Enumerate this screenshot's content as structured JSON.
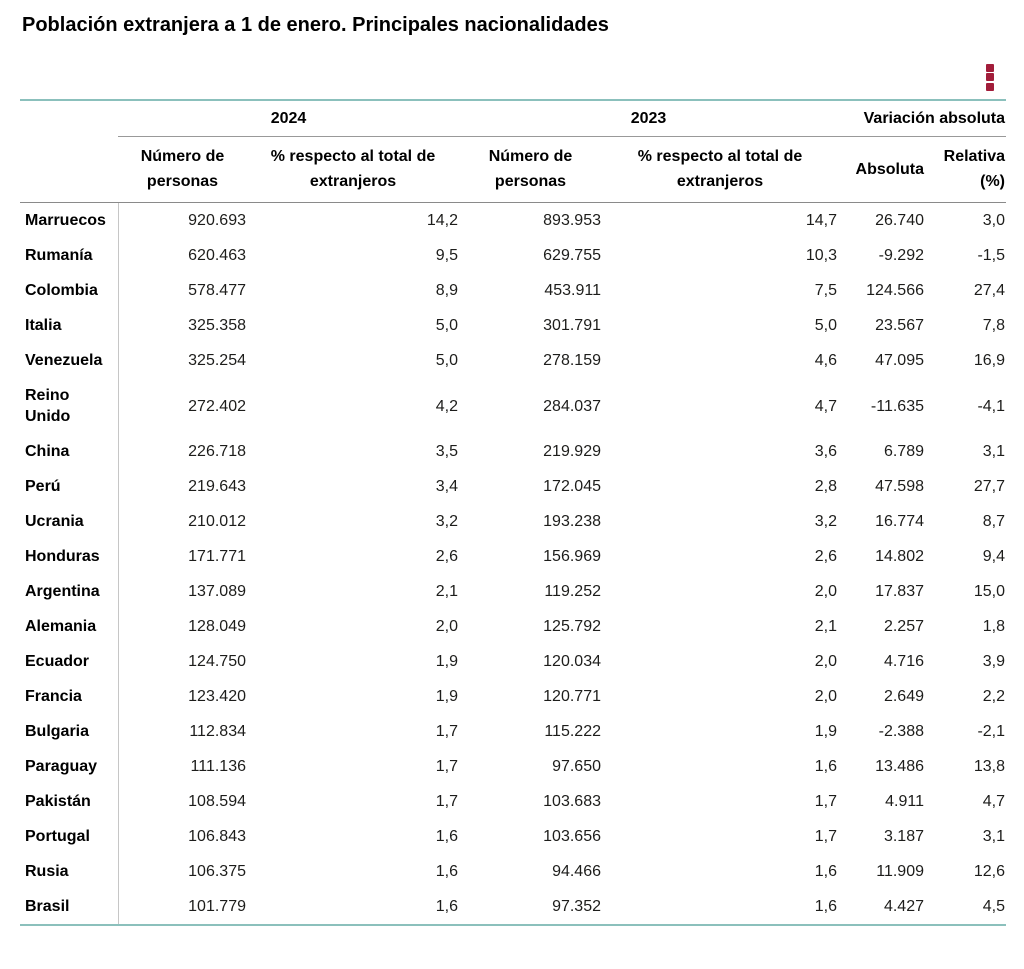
{
  "title": "Población extranjera a 1 de enero. Principales nacionalidades",
  "toolbar": {
    "menu_icon": "kebab-menu-icon",
    "menu_label": "Opciones de la tabla"
  },
  "colors": {
    "accent_red": "#a21d3a",
    "teal_line": "#8bc0bc",
    "gray_line": "#999999",
    "dark_gray_line": "#8a8a8a",
    "column_separator": "#c6c6c6"
  },
  "table": {
    "col_groups": [
      {
        "label": "2024",
        "span": 2
      },
      {
        "label": "2023",
        "span": 2
      },
      {
        "label": "Variación absoluta",
        "span": 2
      }
    ],
    "sub_headers": [
      "Número de personas",
      "% respecto al total de extranjeros",
      "Número de personas",
      "% respecto al total de extranjeros",
      "Absoluta",
      "Relativa (%)"
    ],
    "rows": [
      {
        "label": "Marruecos",
        "values": [
          "920.693",
          "14,2",
          "893.953",
          "14,7",
          "26.740",
          "3,0"
        ]
      },
      {
        "label": "Rumanía",
        "values": [
          "620.463",
          "9,5",
          "629.755",
          "10,3",
          "-9.292",
          "-1,5"
        ]
      },
      {
        "label": "Colombia",
        "values": [
          "578.477",
          "8,9",
          "453.911",
          "7,5",
          "124.566",
          "27,4"
        ]
      },
      {
        "label": "Italia",
        "values": [
          "325.358",
          "5,0",
          "301.791",
          "5,0",
          "23.567",
          "7,8"
        ]
      },
      {
        "label": "Venezuela",
        "values": [
          "325.254",
          "5,0",
          "278.159",
          "4,6",
          "47.095",
          "16,9"
        ]
      },
      {
        "label": "Reino Unido",
        "values": [
          "272.402",
          "4,2",
          "284.037",
          "4,7",
          "-11.635",
          "-4,1"
        ]
      },
      {
        "label": "China",
        "values": [
          "226.718",
          "3,5",
          "219.929",
          "3,6",
          "6.789",
          "3,1"
        ]
      },
      {
        "label": "Perú",
        "values": [
          "219.643",
          "3,4",
          "172.045",
          "2,8",
          "47.598",
          "27,7"
        ]
      },
      {
        "label": "Ucrania",
        "values": [
          "210.012",
          "3,2",
          "193.238",
          "3,2",
          "16.774",
          "8,7"
        ]
      },
      {
        "label": "Honduras",
        "values": [
          "171.771",
          "2,6",
          "156.969",
          "2,6",
          "14.802",
          "9,4"
        ]
      },
      {
        "label": "Argentina",
        "values": [
          "137.089",
          "2,1",
          "119.252",
          "2,0",
          "17.837",
          "15,0"
        ]
      },
      {
        "label": "Alemania",
        "values": [
          "128.049",
          "2,0",
          "125.792",
          "2,1",
          "2.257",
          "1,8"
        ]
      },
      {
        "label": "Ecuador",
        "values": [
          "124.750",
          "1,9",
          "120.034",
          "2,0",
          "4.716",
          "3,9"
        ]
      },
      {
        "label": "Francia",
        "values": [
          "123.420",
          "1,9",
          "120.771",
          "2,0",
          "2.649",
          "2,2"
        ]
      },
      {
        "label": "Bulgaria",
        "values": [
          "112.834",
          "1,7",
          "115.222",
          "1,9",
          "-2.388",
          "-2,1"
        ]
      },
      {
        "label": "Paraguay",
        "values": [
          "111.136",
          "1,7",
          "97.650",
          "1,6",
          "13.486",
          "13,8"
        ]
      },
      {
        "label": "Pakistán",
        "values": [
          "108.594",
          "1,7",
          "103.683",
          "1,7",
          "4.911",
          "4,7"
        ]
      },
      {
        "label": "Portugal",
        "values": [
          "106.843",
          "1,6",
          "103.656",
          "1,7",
          "3.187",
          "3,1"
        ]
      },
      {
        "label": "Rusia",
        "values": [
          "106.375",
          "1,6",
          "94.466",
          "1,6",
          "11.909",
          "12,6"
        ]
      },
      {
        "label": "Brasil",
        "values": [
          "101.779",
          "1,6",
          "97.352",
          "1,6",
          "4.427",
          "4,5"
        ]
      }
    ]
  }
}
